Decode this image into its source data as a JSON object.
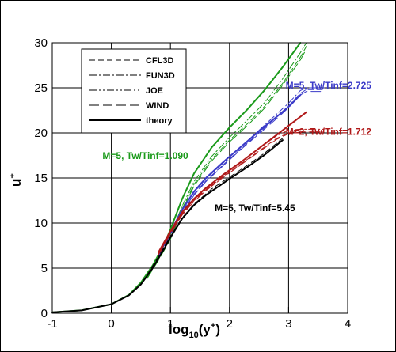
{
  "chart_data": {
    "type": "line",
    "xlabel": {
      "base": "log",
      "sub": "10",
      "open": "(y",
      "sup": "+",
      "close": ")"
    },
    "ylabel": {
      "base": "u",
      "sup": "+"
    },
    "xlim": [
      -1,
      4
    ],
    "ylim": [
      0,
      30
    ],
    "xticks": [
      "-1",
      "0",
      "1",
      "2",
      "3",
      "4"
    ],
    "yticks": [
      "0",
      "5",
      "10",
      "15",
      "20",
      "25",
      "30"
    ],
    "grid": true,
    "legend_position": "top-left",
    "legend": [
      {
        "label": "CFL3D",
        "dash": "7,4",
        "color": "#000000",
        "width": 1
      },
      {
        "label": "FUN3D",
        "dash": "9,3,2,3",
        "color": "#000000",
        "width": 1
      },
      {
        "label": "JOE",
        "dash": "9,3,2,3,2,3",
        "color": "#000000",
        "width": 1
      },
      {
        "label": "WIND",
        "dash": "12,5",
        "color": "#000000",
        "width": 1
      },
      {
        "label": "theory",
        "dash": "",
        "color": "#000000",
        "width": 2
      }
    ],
    "annotations": [
      {
        "text": "M=5, Tw/Tinf=2.725",
        "color": "#3a3ac8",
        "x": 2.95,
        "y": 24.9
      },
      {
        "text": "M=2, Tw/Tinf=1.712",
        "color": "#b01818",
        "x": 2.95,
        "y": 19.8
      },
      {
        "text": "M=5, Tw/Tinf=1.090",
        "color": "#1a9a1a",
        "x": -0.15,
        "y": 17.1
      },
      {
        "text": "M=5, Tw/Tinf=5.45",
        "color": "#000000",
        "x": 1.75,
        "y": 11.3
      }
    ],
    "series": [
      {
        "group": "green",
        "color": "#1a9a1a",
        "dash": "",
        "width": 2,
        "x": [
          -1,
          -0.5,
          0,
          0.3,
          0.5,
          0.7,
          0.9,
          1.0,
          1.2,
          1.4,
          1.7,
          2.0,
          2.3,
          2.6,
          2.9,
          3.2
        ],
        "y": [
          0.1,
          0.33,
          1.0,
          2.05,
          3.4,
          5.3,
          7.7,
          9.3,
          12.7,
          15.5,
          18.4,
          20.6,
          22.6,
          24.8,
          27.3,
          30.0
        ]
      },
      {
        "group": "green",
        "color": "#1a9a1a",
        "dash": "7,4",
        "width": 1,
        "x": [
          0.6,
          0.8,
          1.0,
          1.2,
          1.4,
          1.7,
          2.0,
          2.3,
          2.6,
          2.9,
          3.2,
          3.3
        ],
        "y": [
          3.9,
          6.0,
          8.4,
          11.6,
          14.3,
          17.1,
          19.2,
          21.0,
          23.0,
          25.5,
          28.4,
          29.6
        ]
      },
      {
        "group": "green",
        "color": "#1a9a1a",
        "dash": "9,3,2,3",
        "width": 1,
        "x": [
          0.6,
          0.8,
          1.0,
          1.2,
          1.4,
          1.7,
          2.0,
          2.3,
          2.6,
          2.9,
          3.2,
          3.3
        ],
        "y": [
          4.0,
          6.2,
          8.7,
          11.9,
          14.6,
          17.4,
          19.5,
          21.4,
          23.4,
          26.0,
          28.9,
          30.0
        ]
      },
      {
        "group": "green",
        "color": "#1a9a1a",
        "dash": "12,5",
        "width": 1,
        "x": [
          0.6,
          0.8,
          1.0,
          1.2,
          1.4,
          1.7,
          2.0,
          2.3,
          2.6,
          2.9,
          3.2,
          3.3
        ],
        "y": [
          3.8,
          5.9,
          8.2,
          11.4,
          14.1,
          16.9,
          19.0,
          20.8,
          22.8,
          25.3,
          28.1,
          29.3
        ]
      },
      {
        "group": "blue",
        "color": "#3a3ac8",
        "dash": "",
        "width": 2,
        "x": [
          0.8,
          1.0,
          1.2,
          1.4,
          1.6,
          1.9,
          2.2,
          2.5,
          2.8,
          3.0,
          3.2
        ],
        "y": [
          6.6,
          9.0,
          11.5,
          13.5,
          15.0,
          16.8,
          18.5,
          20.2,
          21.8,
          22.9,
          24.2
        ]
      },
      {
        "group": "blue",
        "color": "#3a3ac8",
        "dash": "7,4",
        "width": 1,
        "x": [
          0.8,
          1.0,
          1.2,
          1.4,
          1.6,
          1.9,
          2.2,
          2.5,
          2.8,
          3.0,
          3.2,
          3.3,
          3.6
        ],
        "y": [
          6.4,
          8.8,
          11.2,
          13.2,
          14.7,
          16.5,
          18.3,
          20.0,
          21.8,
          23.0,
          24.4,
          24.8,
          24.8
        ]
      },
      {
        "group": "blue",
        "color": "#3a3ac8",
        "dash": "9,3,2,3",
        "width": 1,
        "x": [
          0.8,
          1.0,
          1.2,
          1.4,
          1.6,
          1.9,
          2.2,
          2.5,
          2.8,
          3.0,
          3.2,
          3.3,
          3.6
        ],
        "y": [
          6.5,
          8.9,
          11.4,
          13.4,
          14.9,
          16.7,
          18.5,
          20.3,
          22.1,
          23.3,
          24.7,
          25.0,
          25.0
        ]
      },
      {
        "group": "blue",
        "color": "#3a3ac8",
        "dash": "12,5",
        "width": 1,
        "x": [
          0.8,
          1.0,
          1.2,
          1.4,
          1.6,
          1.9,
          2.2,
          2.5,
          2.8,
          3.0,
          3.2,
          3.3,
          3.6
        ],
        "y": [
          6.3,
          8.7,
          11.1,
          13.1,
          14.6,
          16.4,
          18.2,
          19.9,
          21.6,
          22.8,
          24.2,
          24.6,
          24.6
        ]
      },
      {
        "group": "red",
        "color": "#b01818",
        "dash": "",
        "width": 2,
        "x": [
          0.8,
          1.0,
          1.2,
          1.4,
          1.6,
          1.9,
          2.2,
          2.5,
          2.8,
          3.1,
          3.3
        ],
        "y": [
          6.8,
          9.1,
          11.2,
          12.7,
          13.9,
          15.4,
          16.8,
          18.3,
          19.8,
          21.3,
          22.3
        ]
      },
      {
        "group": "red",
        "color": "#b01818",
        "dash": "7,4",
        "width": 1,
        "x": [
          0.8,
          1.0,
          1.2,
          1.4,
          1.6,
          1.9,
          2.2,
          2.5,
          2.8,
          3.0,
          3.2,
          3.6
        ],
        "y": [
          6.6,
          8.9,
          11.0,
          12.5,
          13.7,
          15.2,
          16.6,
          18.0,
          19.4,
          20.0,
          20.2,
          20.2
        ]
      },
      {
        "group": "red",
        "color": "#b01818",
        "dash": "9,3,2,3",
        "width": 1,
        "x": [
          0.8,
          1.0,
          1.2,
          1.4,
          1.6,
          1.9,
          2.2,
          2.5,
          2.8,
          3.0,
          3.2,
          3.6
        ],
        "y": [
          6.7,
          9.0,
          11.1,
          12.6,
          13.8,
          15.3,
          16.8,
          18.3,
          19.7,
          20.3,
          20.4,
          20.4
        ]
      },
      {
        "group": "red",
        "color": "#b01818",
        "dash": "12,5",
        "width": 1,
        "x": [
          0.8,
          1.0,
          1.2,
          1.4,
          1.6,
          1.9,
          2.2,
          2.5,
          2.8,
          3.0,
          3.2,
          3.6
        ],
        "y": [
          6.5,
          8.8,
          10.9,
          12.4,
          13.6,
          15.1,
          16.5,
          17.9,
          19.3,
          19.9,
          20.1,
          20.1
        ]
      },
      {
        "group": "black",
        "color": "#000000",
        "dash": "",
        "width": 2,
        "x": [
          -1,
          -0.5,
          0,
          0.3,
          0.5,
          0.7,
          0.9,
          1.0,
          1.2,
          1.4,
          1.6,
          1.8,
          2.0,
          2.3,
          2.6,
          2.9
        ],
        "y": [
          0.1,
          0.32,
          1.0,
          2.0,
          3.2,
          5.0,
          7.2,
          8.4,
          10.5,
          12.0,
          13.1,
          14.0,
          14.9,
          16.2,
          17.6,
          19.2
        ]
      },
      {
        "group": "black",
        "color": "#000000",
        "dash": "7,4",
        "width": 1,
        "x": [
          0.6,
          0.8,
          1.0,
          1.2,
          1.4,
          1.7,
          2.0,
          2.3,
          2.6,
          2.9
        ],
        "y": [
          4.2,
          6.3,
          8.5,
          10.6,
          12.1,
          13.8,
          15.1,
          16.4,
          17.8,
          19.4
        ]
      }
    ]
  }
}
